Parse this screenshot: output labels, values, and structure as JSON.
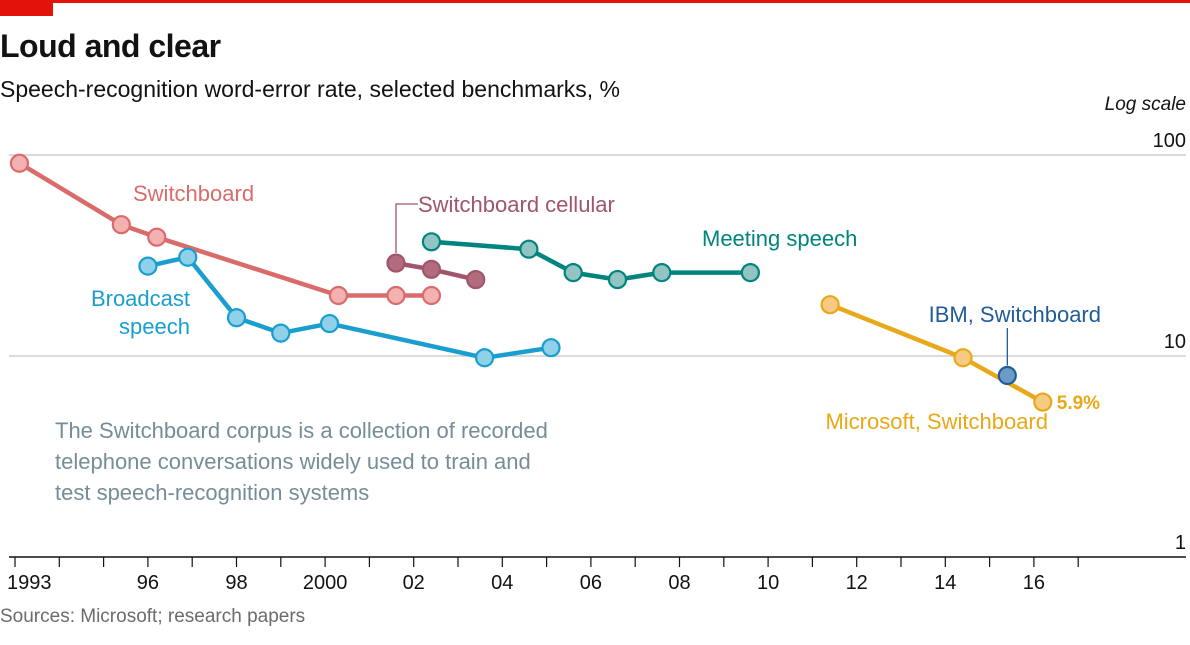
{
  "header": {
    "title": "Loud and clear",
    "subtitle": "Speech-recognition word-error rate, selected benchmarks, %"
  },
  "footer": {
    "source": "Sources: Microsoft; research papers"
  },
  "chart_data": {
    "type": "line",
    "title": "Loud and clear",
    "subtitle": "Speech-recognition word-error rate, selected benchmarks, %",
    "yscale": "log",
    "yscale_note": "Log scale",
    "ylim": [
      1,
      100
    ],
    "xlim": [
      1993,
      2018.2
    ],
    "y_ticks": [
      {
        "value": 100,
        "label": "100"
      },
      {
        "value": 10,
        "label": "10"
      },
      {
        "value": 1,
        "label": "1"
      }
    ],
    "x_ticks": [
      {
        "year": 1993,
        "label": "1993"
      },
      {
        "year": 1996,
        "label": "96"
      },
      {
        "year": 1998,
        "label": "98"
      },
      {
        "year": 2000,
        "label": "2000"
      },
      {
        "year": 2002,
        "label": "02"
      },
      {
        "year": 2004,
        "label": "04"
      },
      {
        "year": 2006,
        "label": "06"
      },
      {
        "year": 2008,
        "label": "08"
      },
      {
        "year": 2010,
        "label": "10"
      },
      {
        "year": 2012,
        "label": "12"
      },
      {
        "year": 2014,
        "label": "14"
      },
      {
        "year": 2016,
        "label": "16"
      }
    ],
    "minor_tick_years": [
      1994,
      1995,
      1997,
      1999,
      2001,
      2003,
      2005,
      2007,
      2009,
      2011,
      2013,
      2015,
      2017
    ],
    "grid": true,
    "series": [
      {
        "name": "Switchboard",
        "color": "#d96b6b",
        "marker_fill": "#f4b1b1",
        "points": [
          {
            "x": 1993.1,
            "y": 91
          },
          {
            "x": 1995.4,
            "y": 45
          },
          {
            "x": 1996.2,
            "y": 39
          },
          {
            "x": 2000.3,
            "y": 20
          },
          {
            "x": 2001.6,
            "y": 20
          },
          {
            "x": 2002.4,
            "y": 20
          }
        ]
      },
      {
        "name": "Switchboard cellular",
        "color": "#a0556c",
        "marker_fill": "#b26c7e",
        "points": [
          {
            "x": 2001.6,
            "y": 29
          },
          {
            "x": 2002.4,
            "y": 27
          },
          {
            "x": 2003.4,
            "y": 24
          }
        ]
      },
      {
        "name": "Meeting speech",
        "color": "#00847e",
        "marker_fill": "#93c4c4",
        "points": [
          {
            "x": 2002.4,
            "y": 37
          },
          {
            "x": 2004.6,
            "y": 34
          },
          {
            "x": 2005.6,
            "y": 26
          },
          {
            "x": 2006.6,
            "y": 24
          },
          {
            "x": 2007.6,
            "y": 26
          },
          {
            "x": 2009.6,
            "y": 26
          }
        ]
      },
      {
        "name": "Broadcast speech",
        "label_lines": [
          "Broadcast",
          "speech"
        ],
        "color": "#1a9ed0",
        "marker_fill": "#90d0e8",
        "points": [
          {
            "x": 1996.0,
            "y": 28
          },
          {
            "x": 1996.9,
            "y": 31
          },
          {
            "x": 1998.0,
            "y": 15.5
          },
          {
            "x": 1999.0,
            "y": 13
          },
          {
            "x": 2000.1,
            "y": 14.5
          },
          {
            "x": 2003.6,
            "y": 9.8
          },
          {
            "x": 2005.1,
            "y": 11
          }
        ]
      },
      {
        "name": "Microsoft, Switchboard",
        "color": "#e8a817",
        "marker_fill": "#f6ca82",
        "points": [
          {
            "x": 2011.4,
            "y": 18
          },
          {
            "x": 2014.4,
            "y": 9.8
          },
          {
            "x": 2016.2,
            "y": 5.9
          }
        ],
        "value_label": "5.9%"
      },
      {
        "name": "IBM, Switchboard",
        "color": "#1f5c99",
        "marker_fill": "#6d9bc7",
        "points": [
          {
            "x": 2015.4,
            "y": 8.0
          }
        ]
      }
    ],
    "annotation": [
      "The Switchboard corpus is a collection of recorded",
      "telephone conversations widely used to train and",
      "test speech-recognition systems"
    ]
  }
}
